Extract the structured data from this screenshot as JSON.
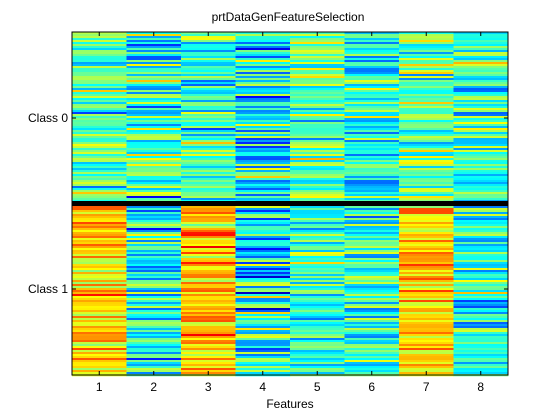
{
  "chart_data": {
    "type": "heatmap",
    "title": "prtDataGenFeatureSelection",
    "xlabel": "Features",
    "ylabel": "",
    "x_ticks": [
      "1",
      "2",
      "3",
      "4",
      "5",
      "6",
      "7",
      "8"
    ],
    "y_ticks": [
      "Class 0",
      "Class 1"
    ],
    "colormap": "jet",
    "grid": false,
    "legend": "none",
    "classes": [
      {
        "name": "Class 0",
        "feature_mean_level": [
          0.45,
          0.42,
          0.44,
          0.38,
          0.47,
          0.4,
          0.46,
          0.4
        ],
        "feature_spread": [
          0.1,
          0.12,
          0.1,
          0.12,
          0.09,
          0.11,
          0.1,
          0.12
        ]
      },
      {
        "name": "Class 1",
        "feature_mean_level": [
          0.66,
          0.4,
          0.68,
          0.39,
          0.44,
          0.41,
          0.67,
          0.4
        ],
        "feature_spread": [
          0.08,
          0.12,
          0.09,
          0.13,
          0.1,
          0.12,
          0.08,
          0.11
        ]
      }
    ],
    "separator": "class boundary line between Class 0 and Class 1"
  }
}
